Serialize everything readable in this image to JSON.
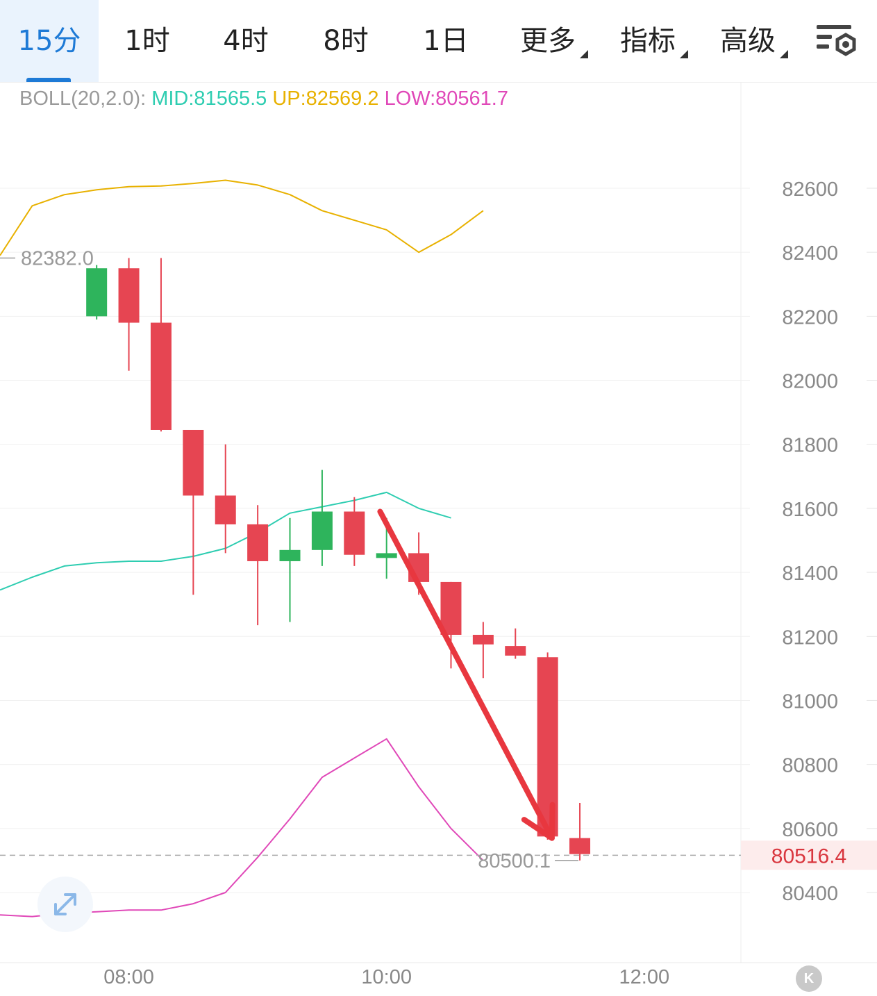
{
  "tabs": [
    {
      "label": "15分",
      "active": true
    },
    {
      "label": "1时"
    },
    {
      "label": "4时"
    },
    {
      "label": "8时"
    },
    {
      "label": "1日"
    },
    {
      "label": "更多",
      "dropdown": true
    },
    {
      "label": "指标",
      "dropdown": true
    },
    {
      "label": "高级",
      "dropdown": true
    }
  ],
  "settings_icon": "chart-settings-icon",
  "indicator": {
    "label": "BOLL(20,2.0):",
    "mid": "MID:81565.5",
    "up": "UP:82569.2",
    "low": "LOW:80561.7"
  },
  "colors": {
    "up_candle": "#2eb45c",
    "down_candle": "#e64552",
    "mid_line": "#2ecdb1",
    "up_line": "#e8b100",
    "low_line": "#e048b8",
    "arrow": "#e8373f",
    "current_price": "#d9363e"
  },
  "expand_icon": "expand-arrows-icon",
  "k_badge": "K",
  "chart_data": {
    "type": "candlestick",
    "interval": "15分",
    "y_ticks": [
      82600,
      82400,
      82200,
      82000,
      81800,
      81600,
      81400,
      81200,
      81000,
      80800,
      80600,
      80400
    ],
    "ylim": [
      80250,
      83000
    ],
    "x_ticks": [
      "08:00",
      "10:00",
      "12:00"
    ],
    "x_range_minutes": [
      420,
      765
    ],
    "candles": [
      {
        "t": 465,
        "open": 82200,
        "close": 82350,
        "high": 82360,
        "low": 82190
      },
      {
        "t": 480,
        "open": 82350,
        "close": 82180,
        "high": 82382,
        "low": 82030
      },
      {
        "t": 495,
        "open": 82180,
        "close": 81845,
        "high": 82382,
        "low": 81840
      },
      {
        "t": 510,
        "open": 81845,
        "close": 81640,
        "high": 81845,
        "low": 81330
      },
      {
        "t": 525,
        "open": 81640,
        "close": 81550,
        "high": 81800,
        "low": 81460
      },
      {
        "t": 540,
        "open": 81550,
        "close": 81435,
        "high": 81610,
        "low": 81235
      },
      {
        "t": 555,
        "open": 81435,
        "close": 81470,
        "high": 81570,
        "low": 81245
      },
      {
        "t": 570,
        "open": 81470,
        "close": 81590,
        "high": 81720,
        "low": 81420
      },
      {
        "t": 585,
        "open": 81590,
        "close": 81455,
        "high": 81635,
        "low": 81420
      },
      {
        "t": 600,
        "open": 81445,
        "close": 81460,
        "high": 81570,
        "low": 81380
      },
      {
        "t": 615,
        "open": 81460,
        "close": 81370,
        "high": 81525,
        "low": 81330
      },
      {
        "t": 630,
        "open": 81370,
        "close": 81205,
        "high": 81370,
        "low": 81100
      },
      {
        "t": 645,
        "open": 81205,
        "close": 81175,
        "high": 81245,
        "low": 81070
      },
      {
        "t": 660,
        "open": 81170,
        "close": 81140,
        "high": 81225,
        "low": 81130
      },
      {
        "t": 675,
        "open": 81135,
        "close": 80575,
        "high": 81150,
        "low": 80565
      },
      {
        "t": 690,
        "open": 80570,
        "close": 80520,
        "high": 80680,
        "low": 80500.1
      }
    ],
    "boll_up": [
      [
        420,
        82390
      ],
      [
        435,
        82545
      ],
      [
        450,
        82580
      ],
      [
        465,
        82595
      ],
      [
        480,
        82605
      ],
      [
        495,
        82607
      ],
      [
        510,
        82615
      ],
      [
        525,
        82625
      ],
      [
        540,
        82610
      ],
      [
        555,
        82580
      ],
      [
        570,
        82530
      ],
      [
        585,
        82500
      ],
      [
        600,
        82470
      ],
      [
        615,
        82400
      ],
      [
        630,
        82455
      ],
      [
        645,
        82530
      ]
    ],
    "boll_mid": [
      [
        420,
        81345
      ],
      [
        435,
        81385
      ],
      [
        450,
        81420
      ],
      [
        465,
        81430
      ],
      [
        480,
        81435
      ],
      [
        495,
        81435
      ],
      [
        510,
        81450
      ],
      [
        525,
        81475
      ],
      [
        540,
        81525
      ],
      [
        555,
        81585
      ],
      [
        570,
        81605
      ],
      [
        585,
        81625
      ],
      [
        600,
        81650
      ],
      [
        615,
        81600
      ],
      [
        630,
        81570
      ]
    ],
    "boll_low": [
      [
        420,
        80330
      ],
      [
        435,
        80325
      ],
      [
        450,
        80335
      ],
      [
        465,
        80340
      ],
      [
        480,
        80345
      ],
      [
        495,
        80345
      ],
      [
        510,
        80365
      ],
      [
        525,
        80400
      ],
      [
        540,
        80510
      ],
      [
        555,
        80630
      ],
      [
        570,
        80760
      ],
      [
        585,
        80820
      ],
      [
        600,
        80880
      ],
      [
        615,
        80730
      ],
      [
        630,
        80600
      ],
      [
        645,
        80500
      ]
    ],
    "high_marker": {
      "value": "82382.0",
      "t": 480
    },
    "low_marker": {
      "value": "80500.1",
      "t": 690
    },
    "current_price": {
      "value": 80516.4,
      "label": "80516.4"
    },
    "annotation_arrow": {
      "from": {
        "t": 597,
        "price": 81590
      },
      "to": {
        "t": 677,
        "price": 80570
      }
    }
  }
}
